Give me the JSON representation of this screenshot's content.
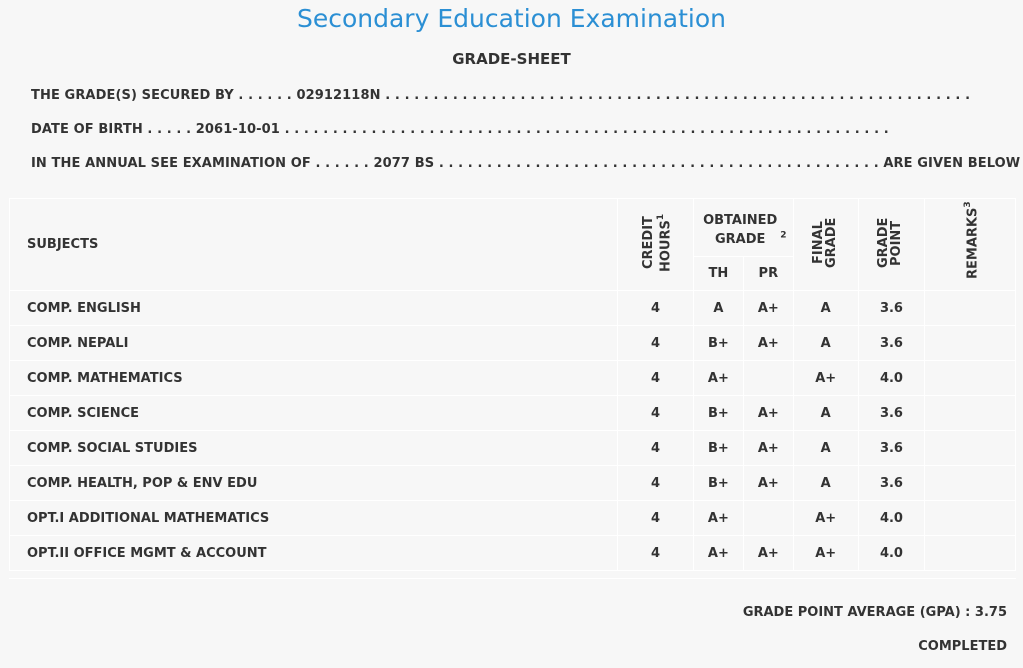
{
  "header": {
    "title": "Secondary Education Examination",
    "subtitle": "GRADE-SHEET"
  },
  "student": {
    "secured_by_label": "THE GRADE(S) SECURED BY . . . . . .",
    "symbol_no": "02912118N",
    "secured_by_trail": ". . . . . . . . . . . . . . . . . . . . . . . . . . . . . . . . . . . . . . . . . . . . . . . . . . . . . . . . . . . . .",
    "dob_label": "DATE OF BIRTH . . . . .",
    "dob": "2061-10-01",
    "dob_trail": ". . . . . . . . . . . . . . . . . . . . . . . . . . . . . . . . . . . . . . . . . . . . . . . . . . . . . . . . . . . . . . .",
    "exam_label": "IN THE ANNUAL SEE EXAMINATION OF . . . . . .",
    "exam_year": "2077 BS",
    "exam_trail": ". . . . . . . . . . . . . . . . . . . . . . . . . . . . . . . . . . . . . . . . . . . . . .",
    "exam_tail": "ARE GIVEN BELOW . . ."
  },
  "table": {
    "headers": {
      "subjects": "SUBJECTS",
      "credit_hours": "CREDIT HOURS",
      "credit_sup": "1",
      "obtained_grade": "OBTAINED GRADE",
      "obtained_sup": "2",
      "th": "TH",
      "pr": "PR",
      "final_grade": "FINAL GRADE",
      "grade_point": "GRADE POINT",
      "remarks": "REMARKS",
      "remarks_sup": "3"
    },
    "rows": [
      {
        "subject": "COMP. ENGLISH",
        "credit": "4",
        "th": "A",
        "pr": "A+",
        "final": "A",
        "gp": "3.6",
        "remarks": ""
      },
      {
        "subject": "COMP. NEPALI",
        "credit": "4",
        "th": "B+",
        "pr": "A+",
        "final": "A",
        "gp": "3.6",
        "remarks": ""
      },
      {
        "subject": "COMP. MATHEMATICS",
        "credit": "4",
        "th": "A+",
        "pr": "",
        "final": "A+",
        "gp": "4.0",
        "remarks": ""
      },
      {
        "subject": "COMP. SCIENCE",
        "credit": "4",
        "th": "B+",
        "pr": "A+",
        "final": "A",
        "gp": "3.6",
        "remarks": ""
      },
      {
        "subject": "COMP. SOCIAL STUDIES",
        "credit": "4",
        "th": "B+",
        "pr": "A+",
        "final": "A",
        "gp": "3.6",
        "remarks": ""
      },
      {
        "subject": "COMP. HEALTH, POP & ENV EDU",
        "credit": "4",
        "th": "B+",
        "pr": "A+",
        "final": "A",
        "gp": "3.6",
        "remarks": ""
      },
      {
        "subject": "OPT.I ADDITIONAL MATHEMATICS",
        "credit": "4",
        "th": "A+",
        "pr": "",
        "final": "A+",
        "gp": "4.0",
        "remarks": ""
      },
      {
        "subject": "OPT.II OFFICE MGMT & ACCOUNT",
        "credit": "4",
        "th": "A+",
        "pr": "A+",
        "final": "A+",
        "gp": "4.0",
        "remarks": ""
      }
    ]
  },
  "summary": {
    "gpa_label": "GRADE POINT AVERAGE (GPA) :",
    "gpa_value": "3.75",
    "status": "COMPLETED"
  },
  "colors": {
    "title": "#2b8fd4",
    "text": "#333333",
    "background": "#f7f7f7",
    "grid": "#ffffff"
  }
}
